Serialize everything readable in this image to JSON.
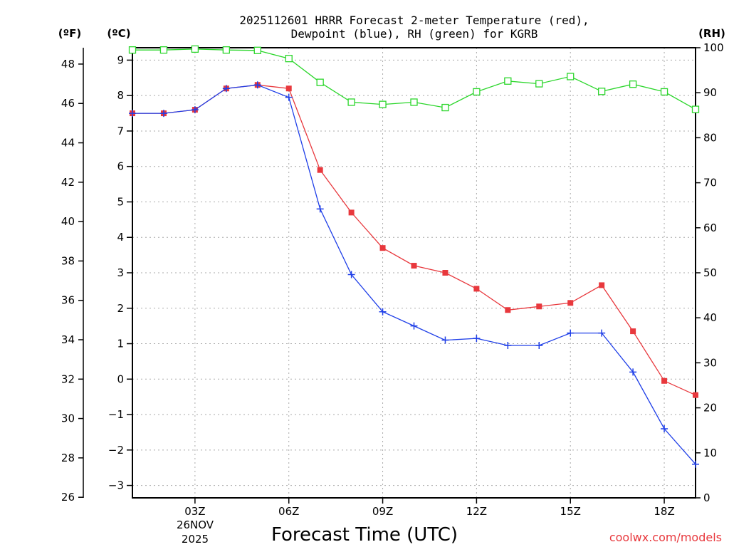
{
  "chart_data": {
    "type": "line",
    "title_line1": "2025112601 HRRR Forecast 2-meter Temperature (red),",
    "title_line2": "Dewpoint (blue), RH (green) for KGRB",
    "xlabel": "Forecast Time (UTC)",
    "unit_left_f": "(ºF)",
    "unit_left_c": "(ºC)",
    "unit_right": "(RH)",
    "credit": "coolwx.com/models",
    "date_label_line1": "26NOV",
    "date_label_line2": "2025",
    "x_hours": [
      1,
      2,
      3,
      4,
      5,
      6,
      7,
      8,
      9,
      10,
      11,
      12,
      13,
      14,
      15,
      16,
      17,
      18,
      19
    ],
    "xlim": [
      1,
      19
    ],
    "x_ticks": [
      3,
      6,
      9,
      12,
      15,
      18
    ],
    "x_tick_labels": [
      "03Z",
      "06Z",
      "09Z",
      "12Z",
      "15Z",
      "18Z"
    ],
    "y_celsius_lim": [
      -3.35,
      9.35
    ],
    "y_celsius_ticks": [
      -3,
      -2,
      -1,
      0,
      1,
      2,
      3,
      4,
      5,
      6,
      7,
      8,
      9
    ],
    "y_celsius_tick_labels": [
      "−3",
      "−2",
      "−1",
      "0",
      "1",
      "2",
      "3",
      "4",
      "5",
      "6",
      "7",
      "8",
      "9"
    ],
    "y_fahrenheit_ticks": [
      26,
      28,
      30,
      32,
      34,
      36,
      38,
      40,
      42,
      44,
      46,
      48
    ],
    "y_fahrenheit_tick_labels": [
      "26",
      "28",
      "30",
      "32",
      "34",
      "36",
      "38",
      "40",
      "42",
      "44",
      "46",
      "48"
    ],
    "y_rh_lim": [
      0,
      100
    ],
    "y_rh_ticks": [
      0,
      10,
      20,
      30,
      40,
      50,
      60,
      70,
      80,
      90,
      100
    ],
    "y_rh_tick_labels": [
      "0",
      "10",
      "20",
      "30",
      "40",
      "50",
      "60",
      "70",
      "80",
      "90",
      "100"
    ],
    "grid": true,
    "series": [
      {
        "name": "Temperature",
        "axis": "celsius",
        "color": "#e8383d",
        "marker": "filled-square",
        "values": [
          7.5,
          7.5,
          7.6,
          8.2,
          8.3,
          8.2,
          5.9,
          4.7,
          3.7,
          3.2,
          3.0,
          2.55,
          1.95,
          2.05,
          2.15,
          2.65,
          1.35,
          -0.05,
          -0.45
        ]
      },
      {
        "name": "Dewpoint",
        "axis": "celsius",
        "color": "#1f3fe8",
        "marker": "plus",
        "values": [
          7.5,
          7.5,
          7.6,
          8.2,
          8.3,
          7.95,
          4.8,
          2.95,
          1.9,
          1.5,
          1.1,
          1.15,
          0.95,
          0.95,
          1.3,
          1.3,
          0.2,
          -1.4,
          -2.4
        ]
      },
      {
        "name": "RH",
        "axis": "rh",
        "color": "#2bd62b",
        "marker": "open-square",
        "values": [
          99.5,
          99.5,
          99.7,
          99.5,
          99.4,
          97.6,
          92.3,
          87.9,
          87.4,
          87.9,
          86.7,
          90.2,
          92.6,
          92.0,
          93.6,
          90.3,
          91.9,
          90.2,
          86.3
        ]
      }
    ]
  }
}
